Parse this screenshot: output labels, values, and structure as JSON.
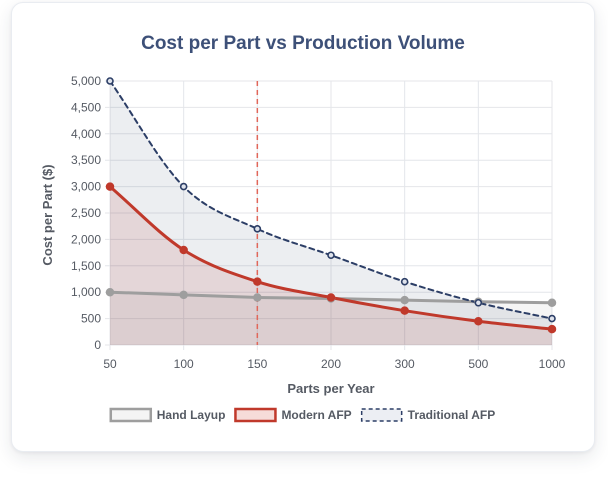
{
  "chart_data": {
    "type": "line",
    "title": "Cost per Part vs Production Volume",
    "xlabel": "Parts per Year",
    "ylabel": "Cost per Part ($)",
    "categories": [
      "50",
      "100",
      "150",
      "200",
      "300",
      "500",
      "1000"
    ],
    "ylim": [
      0,
      5000
    ],
    "y_ticks": [
      0,
      500,
      1000,
      1500,
      2000,
      2500,
      3000,
      3500,
      4000,
      4500,
      5000
    ],
    "y_tick_labels": [
      "0",
      "500",
      "1,000",
      "1,500",
      "2,000",
      "2,500",
      "3,000",
      "3,500",
      "4,000",
      "4,500",
      "5,000"
    ],
    "grid": true,
    "legend_position": "bottom",
    "reference_line": {
      "x_category": "150",
      "style": "dashed",
      "color": "#e0675a"
    },
    "series": [
      {
        "name": "Hand Layup",
        "values": [
          1000,
          950,
          900,
          880,
          850,
          820,
          800
        ],
        "color": "#9e9e9e",
        "fill": "rgba(158,158,158,0.10)",
        "dashed": false,
        "smooth": false
      },
      {
        "name": "Modern AFP",
        "values": [
          3000,
          1800,
          1200,
          900,
          650,
          450,
          300
        ],
        "color": "#c0392b",
        "fill": "rgba(192,57,43,0.13)",
        "dashed": false,
        "smooth": true
      },
      {
        "name": "Traditional AFP",
        "values": [
          5000,
          3000,
          2200,
          1700,
          1200,
          800,
          500
        ],
        "color": "#2c3e66",
        "fill": "rgba(44,62,102,0.09)",
        "dashed": true,
        "smooth": true
      }
    ]
  }
}
